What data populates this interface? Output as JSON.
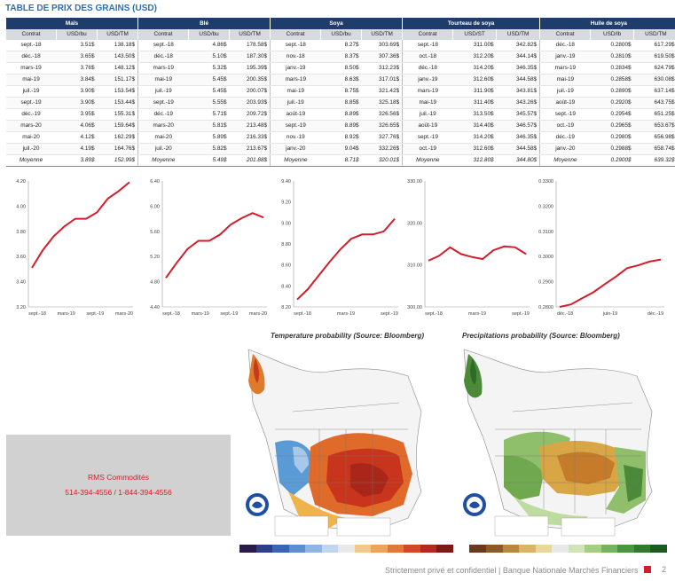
{
  "header": {
    "title": "TABLE DE PRIX DES GRAINS (USD)"
  },
  "table": {
    "groups": [
      "Maïs",
      "Blé",
      "Soya",
      "Tourteau de soya",
      "Huile de soya"
    ],
    "columns": [
      [
        "Contrat",
        "USD/bu",
        "USD/TM"
      ],
      [
        "Contrat",
        "USD/bu",
        "USD/TM"
      ],
      [
        "Contrat",
        "USD/bu",
        "USD/TM"
      ],
      [
        "Contrat",
        "USD/ST",
        "USD/TM"
      ],
      [
        "Contrat",
        "USD/lb",
        "USD/TM"
      ]
    ],
    "rows": [
      [
        "sept.-18",
        "3.51$",
        "138.18$",
        "sept.-18",
        "4.86$",
        "178.58$",
        "sept.-18",
        "8.27$",
        "303.69$",
        "sept.-18",
        "311.00$",
        "342.82$",
        "déc.-18",
        "0.2800$",
        "617.29$"
      ],
      [
        "déc.-18",
        "3.65$",
        "143.50$",
        "déc.-18",
        "5.10$",
        "187.30$",
        "nov.-18",
        "8.37$",
        "307.36$",
        "oct.-18",
        "312.20$",
        "344.14$",
        "janv.-19",
        "0.2810$",
        "619.50$"
      ],
      [
        "mars-19",
        "3.76$",
        "148.12$",
        "mars-19",
        "5.32$",
        "195.39$",
        "janv.-19",
        "8.50$",
        "312.23$",
        "déc.-18",
        "314.20$",
        "346.35$",
        "mars-19",
        "0.2834$",
        "624.79$"
      ],
      [
        "mai-19",
        "3.84$",
        "151.17$",
        "mai-19",
        "5.45$",
        "200.35$",
        "mars-19",
        "8.63$",
        "317.01$",
        "janv.-19",
        "312.60$",
        "344.58$",
        "mai-19",
        "0.2858$",
        "630.08$"
      ],
      [
        "juil.-19",
        "3.90$",
        "153.54$",
        "juil.-19",
        "5.45$",
        "200.07$",
        "mai-19",
        "8.75$",
        "321.42$",
        "mars-19",
        "311.90$",
        "343.81$",
        "juil.-19",
        "0.2890$",
        "637.14$"
      ],
      [
        "sept.-19",
        "3.90$",
        "153.44$",
        "sept.-19",
        "5.55$",
        "203.93$",
        "juil.-19",
        "8.85$",
        "325.18$",
        "mai-19",
        "311.40$",
        "343.26$",
        "août-19",
        "0.2920$",
        "643.75$"
      ],
      [
        "déc.-19",
        "3.95$",
        "155.31$",
        "déc.-19",
        "5.71$",
        "209.72$",
        "août-19",
        "8.89$",
        "326.56$",
        "juil.-19",
        "313.50$",
        "345.57$",
        "sept.-19",
        "0.2954$",
        "651.25$"
      ],
      [
        "mars-20",
        "4.06$",
        "159.64$",
        "mars-20",
        "5.81$",
        "213.48$",
        "sept.-19",
        "8.89$",
        "326.65$",
        "août-19",
        "314.40$",
        "346.57$",
        "oct.-19",
        "0.2965$",
        "653.67$"
      ],
      [
        "mai-20",
        "4.12$",
        "162.29$",
        "mai-20",
        "5.89$",
        "216.33$",
        "nov.-19",
        "8.92$",
        "327.76$",
        "sept.-19",
        "314.20$",
        "346.35$",
        "déc.-19",
        "0.2980$",
        "656.98$"
      ],
      [
        "juil.-20",
        "4.19$",
        "164.76$",
        "juil.-20",
        "5.82$",
        "213.67$",
        "janv.-20",
        "9.04$",
        "332.26$",
        "oct.-19",
        "312.60$",
        "344.58$",
        "janv.-20",
        "0.2988$",
        "658.74$"
      ],
      [
        "Moyenne",
        "3.89$",
        "152.99$",
        "Moyenne",
        "5.49$",
        "201.88$",
        "Moyenne",
        "8.71$",
        "320.01$",
        "Moyenne",
        "312.80$",
        "344.80$",
        "Moyenne",
        "0.2900$",
        "639.32$"
      ]
    ]
  },
  "chart_data": [
    {
      "type": "line",
      "title": "Maïs",
      "ylim": [
        3.2,
        4.2
      ],
      "yticks": [
        "3.20",
        "3.40",
        "3.60",
        "3.80",
        "4.00",
        "4.20"
      ],
      "xticks": [
        "sept.-18",
        "mars-19",
        "sept.-19",
        "mars-20"
      ],
      "values": [
        3.51,
        3.65,
        3.76,
        3.84,
        3.9,
        3.9,
        3.95,
        4.06,
        4.12,
        4.19
      ],
      "color": "#d31d2a"
    },
    {
      "type": "line",
      "title": "Blé",
      "ylim": [
        4.4,
        6.4
      ],
      "yticks": [
        "4.40",
        "4.80",
        "5.20",
        "5.60",
        "6.00",
        "6.40"
      ],
      "xticks": [
        "sept.-18",
        "mars-19",
        "sept.-19",
        "mars-20"
      ],
      "values": [
        4.86,
        5.1,
        5.32,
        5.45,
        5.45,
        5.55,
        5.71,
        5.81,
        5.89,
        5.82
      ],
      "color": "#d31d2a"
    },
    {
      "type": "line",
      "title": "Soya",
      "ylim": [
        8.2,
        9.4
      ],
      "yticks": [
        "8.20",
        "8.40",
        "8.60",
        "8.80",
        "9.00",
        "9.20",
        "9.40"
      ],
      "xticks": [
        "sept.-18",
        "mars-19",
        "sept.-19"
      ],
      "values": [
        8.27,
        8.37,
        8.5,
        8.63,
        8.75,
        8.85,
        8.89,
        8.89,
        8.92,
        9.04
      ],
      "color": "#d31d2a"
    },
    {
      "type": "line",
      "title": "Tourteau de soya",
      "ylim": [
        300,
        330
      ],
      "yticks": [
        "300.00",
        "310.00",
        "320.00",
        "330.00"
      ],
      "xticks": [
        "sept.-18",
        "mars-19",
        "sept.-19"
      ],
      "values": [
        311.0,
        312.2,
        314.2,
        312.6,
        311.9,
        311.4,
        313.5,
        314.4,
        314.2,
        312.6
      ],
      "color": "#d31d2a"
    },
    {
      "type": "line",
      "title": "Huile de soya",
      "ylim": [
        0.28,
        0.33
      ],
      "yticks": [
        "0.2800",
        "0.2900",
        "0.3000",
        "0.3100",
        "0.3200",
        "0.3300"
      ],
      "xticks": [
        "déc.-18",
        "juin-19",
        "déc.-19"
      ],
      "values": [
        0.28,
        0.281,
        0.2834,
        0.2858,
        0.289,
        0.292,
        0.2954,
        0.2965,
        0.298,
        0.2988
      ],
      "color": "#d31d2a"
    }
  ],
  "maps": {
    "temperature_title": "Temperature probability (Source: Bloomberg)",
    "precipitation_title": "Precipitations probability (Source: Bloomberg)"
  },
  "contact": {
    "name": "RMS Commodités",
    "phones": "514-394-4556 / 1-844-394-4556"
  },
  "footer": {
    "text": "Strictement privé et confidentiel | Banque Nationale Marchés Financiers",
    "page": "2"
  }
}
